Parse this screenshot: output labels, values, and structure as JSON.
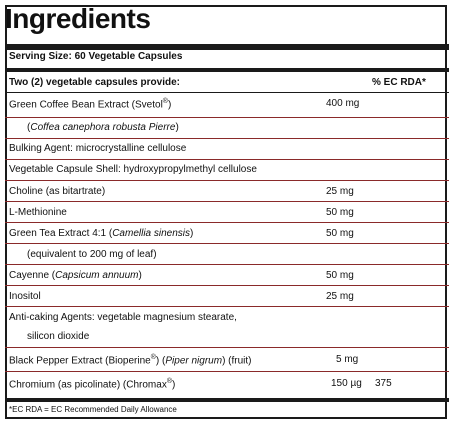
{
  "title": "Ingredients",
  "serving": "Serving Size: 60 Vegetable Capsules",
  "header": {
    "provide": "Two (2) vegetable capsules provide:",
    "rda": "% EC RDA*"
  },
  "rows": [
    {
      "pre": "Green Coffee Bean Extract (Svetol",
      "sup": "®",
      "post": ")",
      "amount": "400 mg"
    },
    {
      "pre": "(",
      "italic": "Coffea canephora robusta Pierre",
      "post": ")"
    },
    {
      "pre": "Bulking Agent: microcrystalline cellulose"
    },
    {
      "pre": "Vegetable Capsule Shell: hydroxypropylmethyl cellulose"
    },
    {
      "pre": "Choline (as bitartrate)",
      "amount": "25 mg"
    },
    {
      "pre": "L-Methionine",
      "amount": "50 mg"
    },
    {
      "pre": "Green Tea Extract 4:1 (",
      "italic": "Camellia sinensis",
      "post": ")",
      "amount": "50 mg"
    },
    {
      "pre": "(equivalent to 200 mg of leaf)"
    },
    {
      "pre": "Cayenne (",
      "italic": "Capsicum annuum",
      "post": ")",
      "amount": "50 mg"
    },
    {
      "pre": "Inositol",
      "amount": "25 mg"
    },
    {
      "pre": "Anti-caking Agents: vegetable magnesium stearate,"
    },
    {
      "pre": "silicon dioxide"
    },
    {
      "pre": "Black Pepper Extract (Bioperine",
      "sup": "®",
      "post": ") (",
      "italic": "Piper nigrum",
      "post2": ") (fruit)",
      "amount": "5 mg"
    },
    {
      "pre": "Chromium (as picolinate) (Chromax",
      "sup": "®",
      "post": ")",
      "amount": "150 µg",
      "rda": "375"
    }
  ],
  "footnote": "*EC RDA = EC Recommended Daily Allowance"
}
